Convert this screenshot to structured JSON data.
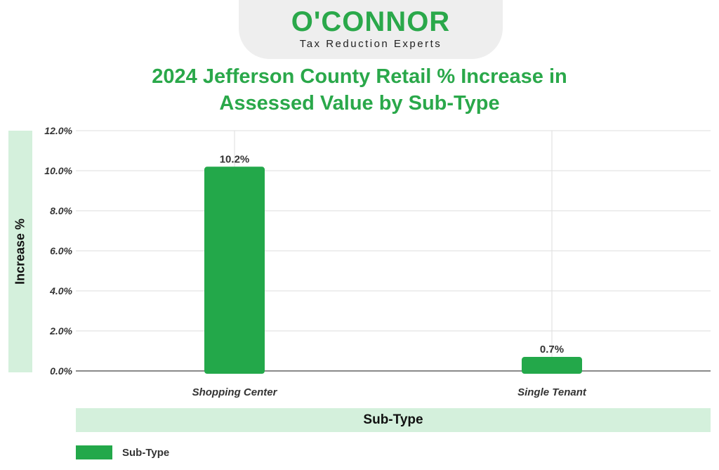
{
  "logo": {
    "wordmark": "O'CONNOR",
    "tagline": "Tax Reduction Experts"
  },
  "chart_data": {
    "type": "bar",
    "title_line1": "2024 Jefferson County Retail % Increase in",
    "title_line2": "Assessed Value by Sub-Type",
    "xlabel": "Sub-Type",
    "ylabel": "Increase %",
    "categories": [
      "Shopping Center",
      "Single Tenant"
    ],
    "series": [
      {
        "name": "Sub-Type",
        "values": [
          10.2,
          0.7
        ]
      }
    ],
    "data_labels": [
      "10.2%",
      "0.7%"
    ],
    "ylim": [
      0,
      12
    ],
    "yticks": [
      "0.0%",
      "2.0%",
      "4.0%",
      "6.0%",
      "8.0%",
      "10.0%",
      "12.0%"
    ],
    "grid": true,
    "legend_position": "bottom-left",
    "bar_color": "#23a84a",
    "accent_color": "#2aa84a",
    "band_color": "#d4f0dc"
  }
}
